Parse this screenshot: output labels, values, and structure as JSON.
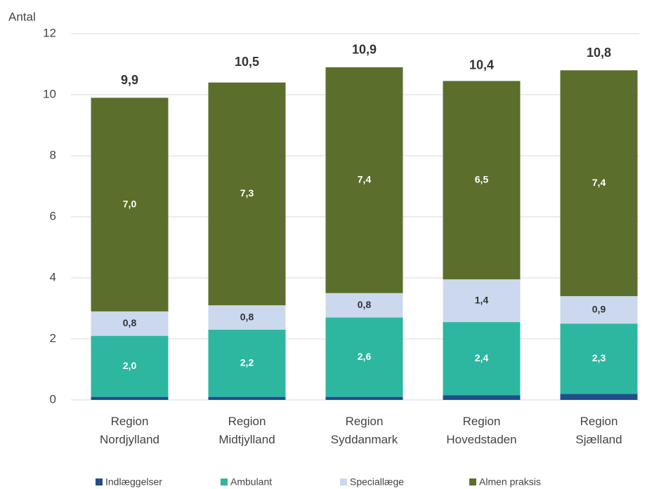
{
  "chart_data": {
    "type": "stacked_bar",
    "y_label": "Antal",
    "categories": [
      "Region Nordjylland",
      "Region Midtjylland",
      "Region Syddanmark",
      "Region Hovedstaden",
      "Region Sjælland"
    ],
    "series": [
      {
        "name": "Indlæggelser",
        "color": "#1f4e8c",
        "values": [
          0.1,
          0.1,
          0.1,
          0.15,
          0.2
        ]
      },
      {
        "name": "Ambulant",
        "color": "#2db7a0",
        "values": [
          2.0,
          2.2,
          2.6,
          2.4,
          2.3
        ],
        "value_labels": [
          "2,0",
          "2,2",
          "2,6",
          "2,4",
          "2,3"
        ]
      },
      {
        "name": "Speciallæge",
        "color": "#cbd8ee",
        "values": [
          0.8,
          0.8,
          0.8,
          1.4,
          0.9
        ],
        "value_labels": [
          "0,8",
          "0,8",
          "0,8",
          "1,4",
          "0,9"
        ]
      },
      {
        "name": "Almen praksis",
        "color": "#5b6e2b",
        "values": [
          7.0,
          7.3,
          7.4,
          6.5,
          7.4
        ],
        "value_labels": [
          "7,0",
          "7,3",
          "7,4",
          "6,5",
          "7,4"
        ]
      }
    ],
    "totals": [
      9.9,
      10.5,
      10.9,
      10.4,
      10.8
    ],
    "total_labels": [
      "9,9",
      "10,5",
      "10,9",
      "10,4",
      "10,8"
    ],
    "ylim": [
      0,
      12
    ],
    "yticks": [
      0,
      2,
      4,
      6,
      8,
      10,
      12
    ],
    "grid": true,
    "legend": "bottom"
  }
}
